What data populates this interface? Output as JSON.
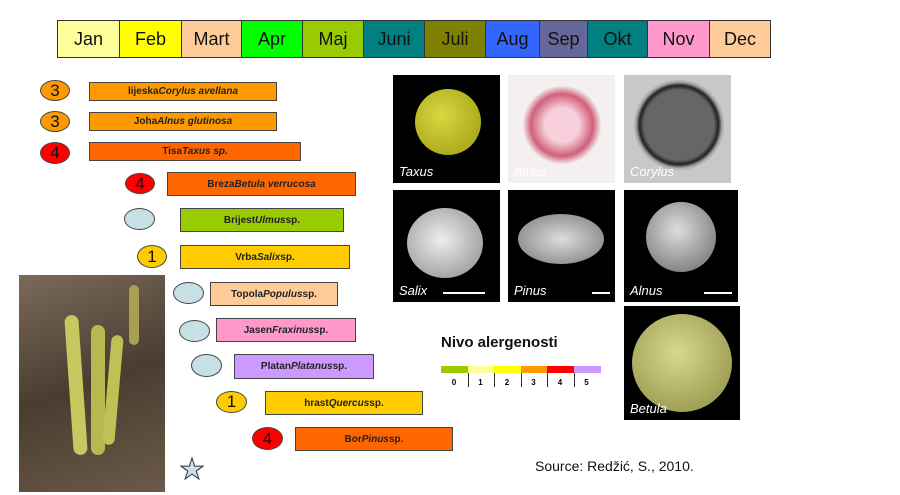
{
  "months": [
    {
      "label": "Jan",
      "color": "#ffff99"
    },
    {
      "label": "Feb",
      "color": "#ffff00"
    },
    {
      "label": "Mart",
      "color": "#ffcc99"
    },
    {
      "label": "Apr",
      "color": "#00ff00"
    },
    {
      "label": "Maj",
      "color": "#99cc00"
    },
    {
      "label": "Juni",
      "color": "#008080"
    },
    {
      "label": "Juli",
      "color": "#808000"
    },
    {
      "label": "Aug",
      "color": "#3366ff"
    },
    {
      "label": "Sep",
      "color": "#666699"
    },
    {
      "label": "Okt",
      "color": "#008080"
    },
    {
      "label": "Nov",
      "color": "#ff99cc"
    },
    {
      "label": "Dec",
      "color": "#ffcc99"
    }
  ],
  "plants": [
    {
      "common": "lijeska",
      "latin": "Corylus avellana",
      "suffix": "",
      "level": "3",
      "color": "#ff9900"
    },
    {
      "common": "Joha",
      "latin": "Alnus glutinosa",
      "suffix": "",
      "level": "3",
      "color": "#ff9900"
    },
    {
      "common": "Tisa",
      "latin": "Taxus sp.",
      "suffix": "",
      "level": "4",
      "color": "#ff6600"
    },
    {
      "common": "Breza",
      "latin": "Betula verrucosa",
      "suffix": "",
      "level": "4",
      "color": "#ff6600"
    },
    {
      "common": "Brijest",
      "latin": "Ulmus",
      "suffix": "sp.",
      "level": "",
      "color": "#99cc00"
    },
    {
      "common": "Vrba",
      "latin": "Salix",
      "suffix": "sp.",
      "level": "1",
      "color": "#ffcc00"
    },
    {
      "common": "Topola",
      "latin": "Populus",
      "suffix": "sp.",
      "level": "",
      "color": "#ffcc99"
    },
    {
      "common": "Jasen",
      "latin": "Fraxinus",
      "suffix": "sp.",
      "level": "",
      "color": "#ff99cc"
    },
    {
      "common": "Platan",
      "latin": "Platanus",
      "suffix": "sp.",
      "level": "",
      "color": "#cc99ff"
    },
    {
      "common": "hrast",
      "latin": "Quercus",
      "suffix": "sp.",
      "level": "1",
      "color": "#ffcc00"
    },
    {
      "common": "Bor",
      "latin": "Pinus",
      "suffix": "sp.",
      "level": "4",
      "color": "#ff6600"
    }
  ],
  "pollen_images": [
    "Taxus",
    "Alnus",
    "Corylus",
    "Salix",
    "Pinus",
    "Alnus",
    "Betula"
  ],
  "legend": {
    "title": "Nivo alergenosti",
    "levels": [
      {
        "label": "0",
        "color": "#99cc00"
      },
      {
        "label": "1",
        "color": "#ffff99"
      },
      {
        "label": "2",
        "color": "#ffff00"
      },
      {
        "label": "3",
        "color": "#ff9900"
      },
      {
        "label": "4",
        "color": "#ff0000"
      },
      {
        "label": "5",
        "color": "#cc99ff"
      }
    ]
  },
  "unknown_level_color": "#c6e0e6",
  "source": "Source: Redžić, S., 2010."
}
